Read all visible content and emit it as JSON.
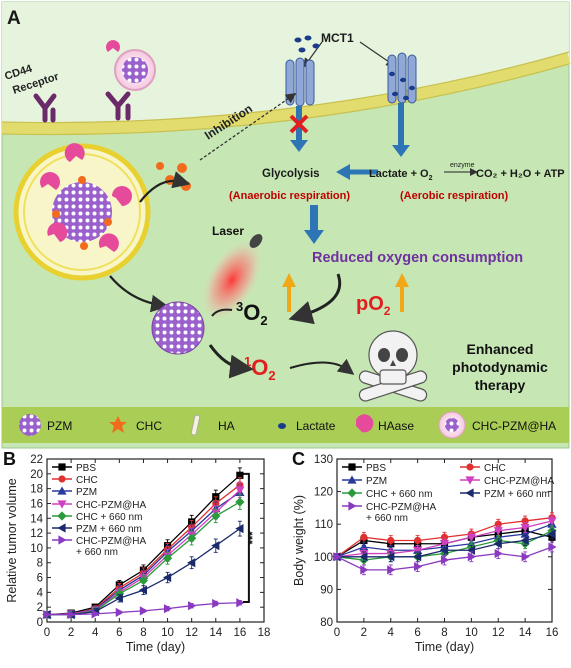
{
  "panel_a": {
    "label": "A",
    "cd44_receptor": [
      "CD44",
      "Receptor"
    ],
    "mct1": "MCT1",
    "inhibition": "Inhibition",
    "glycolysis": "Glycolysis",
    "anaerobic": "(Anaerobic respiration)",
    "lactate_eq_left": "Lactate + O",
    "enzyme": "enzyme",
    "lactate_eq_right": "CO₂ + H₂O + ATP",
    "aerobic": "(Aerobic respiration)",
    "laser": "Laser",
    "reduced_oxygen": "Reduced oxygen consumption",
    "triplet_o2_sup": "3",
    "triplet_o2": "O",
    "triplet_o2_sub": "2",
    "po2": "pO",
    "po2_sub": "2",
    "singlet_o2_sup": "1",
    "singlet_o2": "O",
    "singlet_o2_sub": "2",
    "enhanced": [
      "Enhanced",
      "photodynamic",
      "therapy"
    ],
    "legend": [
      {
        "icon": "pzm-icon",
        "label": "PZM"
      },
      {
        "icon": "chc-icon",
        "label": "CHC"
      },
      {
        "icon": "ha-icon",
        "label": "HA"
      },
      {
        "icon": "lactate-icon",
        "label": "Lactate"
      },
      {
        "icon": "haase-icon",
        "label": "HAase"
      },
      {
        "icon": "chc-pzm-ha-icon",
        "label": "CHC-PZM@HA"
      }
    ],
    "colors": {
      "cell_bg": "#c6e7b4",
      "membrane": "#e1dc6d",
      "legend_bg": "#a9cd55",
      "red_text": "#c00000",
      "purple_text": "#7030a0",
      "blue_arrow": "#2e75b6",
      "orange_arrow": "#f0a818"
    }
  },
  "chart_data": [
    {
      "label": "B",
      "type": "line",
      "ylabel": "Relative tumor volume",
      "xlabel": "Time (day)",
      "x": [
        0,
        2,
        4,
        6,
        8,
        10,
        12,
        14,
        16
      ],
      "xlim": [
        0,
        18
      ],
      "ylim": [
        0,
        22
      ],
      "xticks": [
        "0",
        "2",
        "4",
        "6",
        "8",
        "10",
        "12",
        "14",
        "16",
        "18"
      ],
      "yticks": [
        "0",
        "2",
        "4",
        "6",
        "8",
        "10",
        "12",
        "14",
        "16",
        "18",
        "20",
        "22"
      ],
      "significance": "***",
      "series": [
        {
          "name": "PBS",
          "color": "#000000",
          "marker": "square",
          "values": [
            1.0,
            1.2,
            2.0,
            5.0,
            7.0,
            10.3,
            13.5,
            16.9,
            19.8
          ],
          "err": [
            0.2,
            0.3,
            0.4,
            0.6,
            0.7,
            0.8,
            0.9,
            0.9,
            1.0
          ]
        },
        {
          "name": "CHC",
          "color": "#e03030",
          "marker": "circle",
          "values": [
            1.0,
            1.1,
            1.8,
            4.6,
            6.6,
            9.8,
            12.8,
            16.0,
            18.5
          ],
          "err": [
            0.2,
            0.3,
            0.4,
            0.6,
            0.7,
            0.8,
            0.9,
            0.9,
            1.0
          ]
        },
        {
          "name": "PZM",
          "color": "#2a3a9c",
          "marker": "triangle-up",
          "values": [
            1.0,
            1.1,
            1.7,
            4.3,
            6.3,
            9.5,
            12.3,
            15.3,
            17.5
          ],
          "err": [
            0.2,
            0.3,
            0.4,
            0.6,
            0.7,
            0.8,
            0.9,
            0.9,
            1.0
          ]
        },
        {
          "name": "CHC-PZM@HA",
          "color": "#d040c0",
          "marker": "triangle-down",
          "values": [
            1.0,
            1.1,
            1.6,
            4.0,
            6.0,
            9.0,
            11.8,
            14.8,
            17.8
          ],
          "err": [
            0.2,
            0.3,
            0.4,
            0.6,
            0.7,
            0.8,
            0.9,
            0.9,
            1.0
          ]
        },
        {
          "name": "CHC + 660 nm",
          "color": "#2a9a3a",
          "marker": "diamond",
          "values": [
            1.0,
            1.0,
            1.5,
            3.8,
            5.6,
            8.6,
            11.3,
            14.3,
            16.2
          ],
          "err": [
            0.2,
            0.3,
            0.4,
            0.6,
            0.7,
            0.8,
            0.9,
            0.9,
            1.0
          ]
        },
        {
          "name": "PZM + 660 nm",
          "color": "#1a2a6c",
          "marker": "triangle-left",
          "values": [
            1.0,
            1.0,
            1.4,
            3.2,
            4.3,
            6.0,
            8.0,
            10.3,
            12.6
          ],
          "err": [
            0.2,
            0.3,
            0.4,
            0.5,
            0.6,
            0.7,
            0.8,
            0.9,
            1.0
          ]
        },
        {
          "name": "CHC-PZM@HA + 660 nm",
          "legend_lines": [
            "CHC-PZM@HA",
            "+ 660 nm"
          ],
          "color": "#8a3ac0",
          "marker": "triangle-right",
          "values": [
            1.0,
            1.0,
            1.1,
            1.3,
            1.5,
            1.8,
            2.2,
            2.5,
            2.6
          ],
          "err": [
            0.1,
            0.1,
            0.2,
            0.2,
            0.2,
            0.3,
            0.3,
            0.3,
            0.3
          ]
        }
      ]
    },
    {
      "label": "C",
      "type": "line",
      "ylabel": "Body weight (%)",
      "xlabel": "Time (day)",
      "x": [
        0,
        2,
        4,
        6,
        8,
        10,
        12,
        14,
        16
      ],
      "xlim": [
        0,
        16
      ],
      "ylim": [
        80,
        130
      ],
      "xticks": [
        "0",
        "2",
        "4",
        "6",
        "8",
        "10",
        "12",
        "14",
        "16"
      ],
      "yticks": [
        "80",
        "90",
        "100",
        "110",
        "120",
        "130"
      ],
      "series": [
        {
          "name": "PBS",
          "color": "#000000",
          "marker": "square",
          "values": [
            100,
            105,
            104,
            104,
            104,
            106,
            107,
            108,
            106
          ],
          "err": [
            1,
            1.5,
            1.5,
            1.5,
            1.5,
            1.5,
            1.5,
            1.5,
            1.5
          ]
        },
        {
          "name": "CHC",
          "color": "#e03030",
          "marker": "circle",
          "values": [
            100,
            106,
            105,
            105,
            106,
            107,
            110,
            111,
            112
          ],
          "err": [
            1,
            1.5,
            1.5,
            1.5,
            1.5,
            1.5,
            1.5,
            1.5,
            1.5
          ]
        },
        {
          "name": "PZM",
          "color": "#2a3a9c",
          "marker": "triangle-up",
          "values": [
            100,
            103,
            102,
            102,
            103,
            104,
            106,
            107,
            110
          ],
          "err": [
            1,
            1.5,
            1.5,
            1.5,
            1.5,
            1.5,
            1.5,
            1.5,
            1.5
          ]
        },
        {
          "name": "CHC-PZM@HA",
          "color": "#d040c0",
          "marker": "triangle-down",
          "values": [
            100,
            101,
            101,
            102,
            104,
            106,
            108,
            109,
            111
          ],
          "err": [
            1,
            1.5,
            1.5,
            1.5,
            1.5,
            1.5,
            1.5,
            1.5,
            1.5
          ]
        },
        {
          "name": "CHC + 660 nm",
          "color": "#2a9a3a",
          "marker": "diamond",
          "values": [
            100,
            99,
            100,
            100,
            101,
            103,
            105,
            104,
            108
          ],
          "err": [
            1,
            1.5,
            1.5,
            1.5,
            1.5,
            1.5,
            1.5,
            1.5,
            1.5
          ]
        },
        {
          "name": "PZM + 660 nm",
          "color": "#1a2a6c",
          "marker": "triangle-left",
          "values": [
            100,
            100,
            100,
            100,
            102,
            102,
            104,
            105,
            107
          ],
          "err": [
            1,
            1.5,
            1.5,
            1.5,
            1.5,
            1.5,
            1.5,
            1.5,
            1.5
          ]
        },
        {
          "name": "CHC-PZM@HA + 660 nm",
          "legend_lines": [
            "CHC-PZM@HA",
            "+ 660 nm"
          ],
          "color": "#8a3ac0",
          "marker": "triangle-right",
          "values": [
            100,
            96,
            96,
            97,
            99,
            100,
            101,
            100,
            103
          ],
          "err": [
            1,
            1.5,
            1.5,
            1.5,
            1.5,
            1.5,
            1.5,
            1.5,
            1.5
          ]
        }
      ]
    }
  ]
}
